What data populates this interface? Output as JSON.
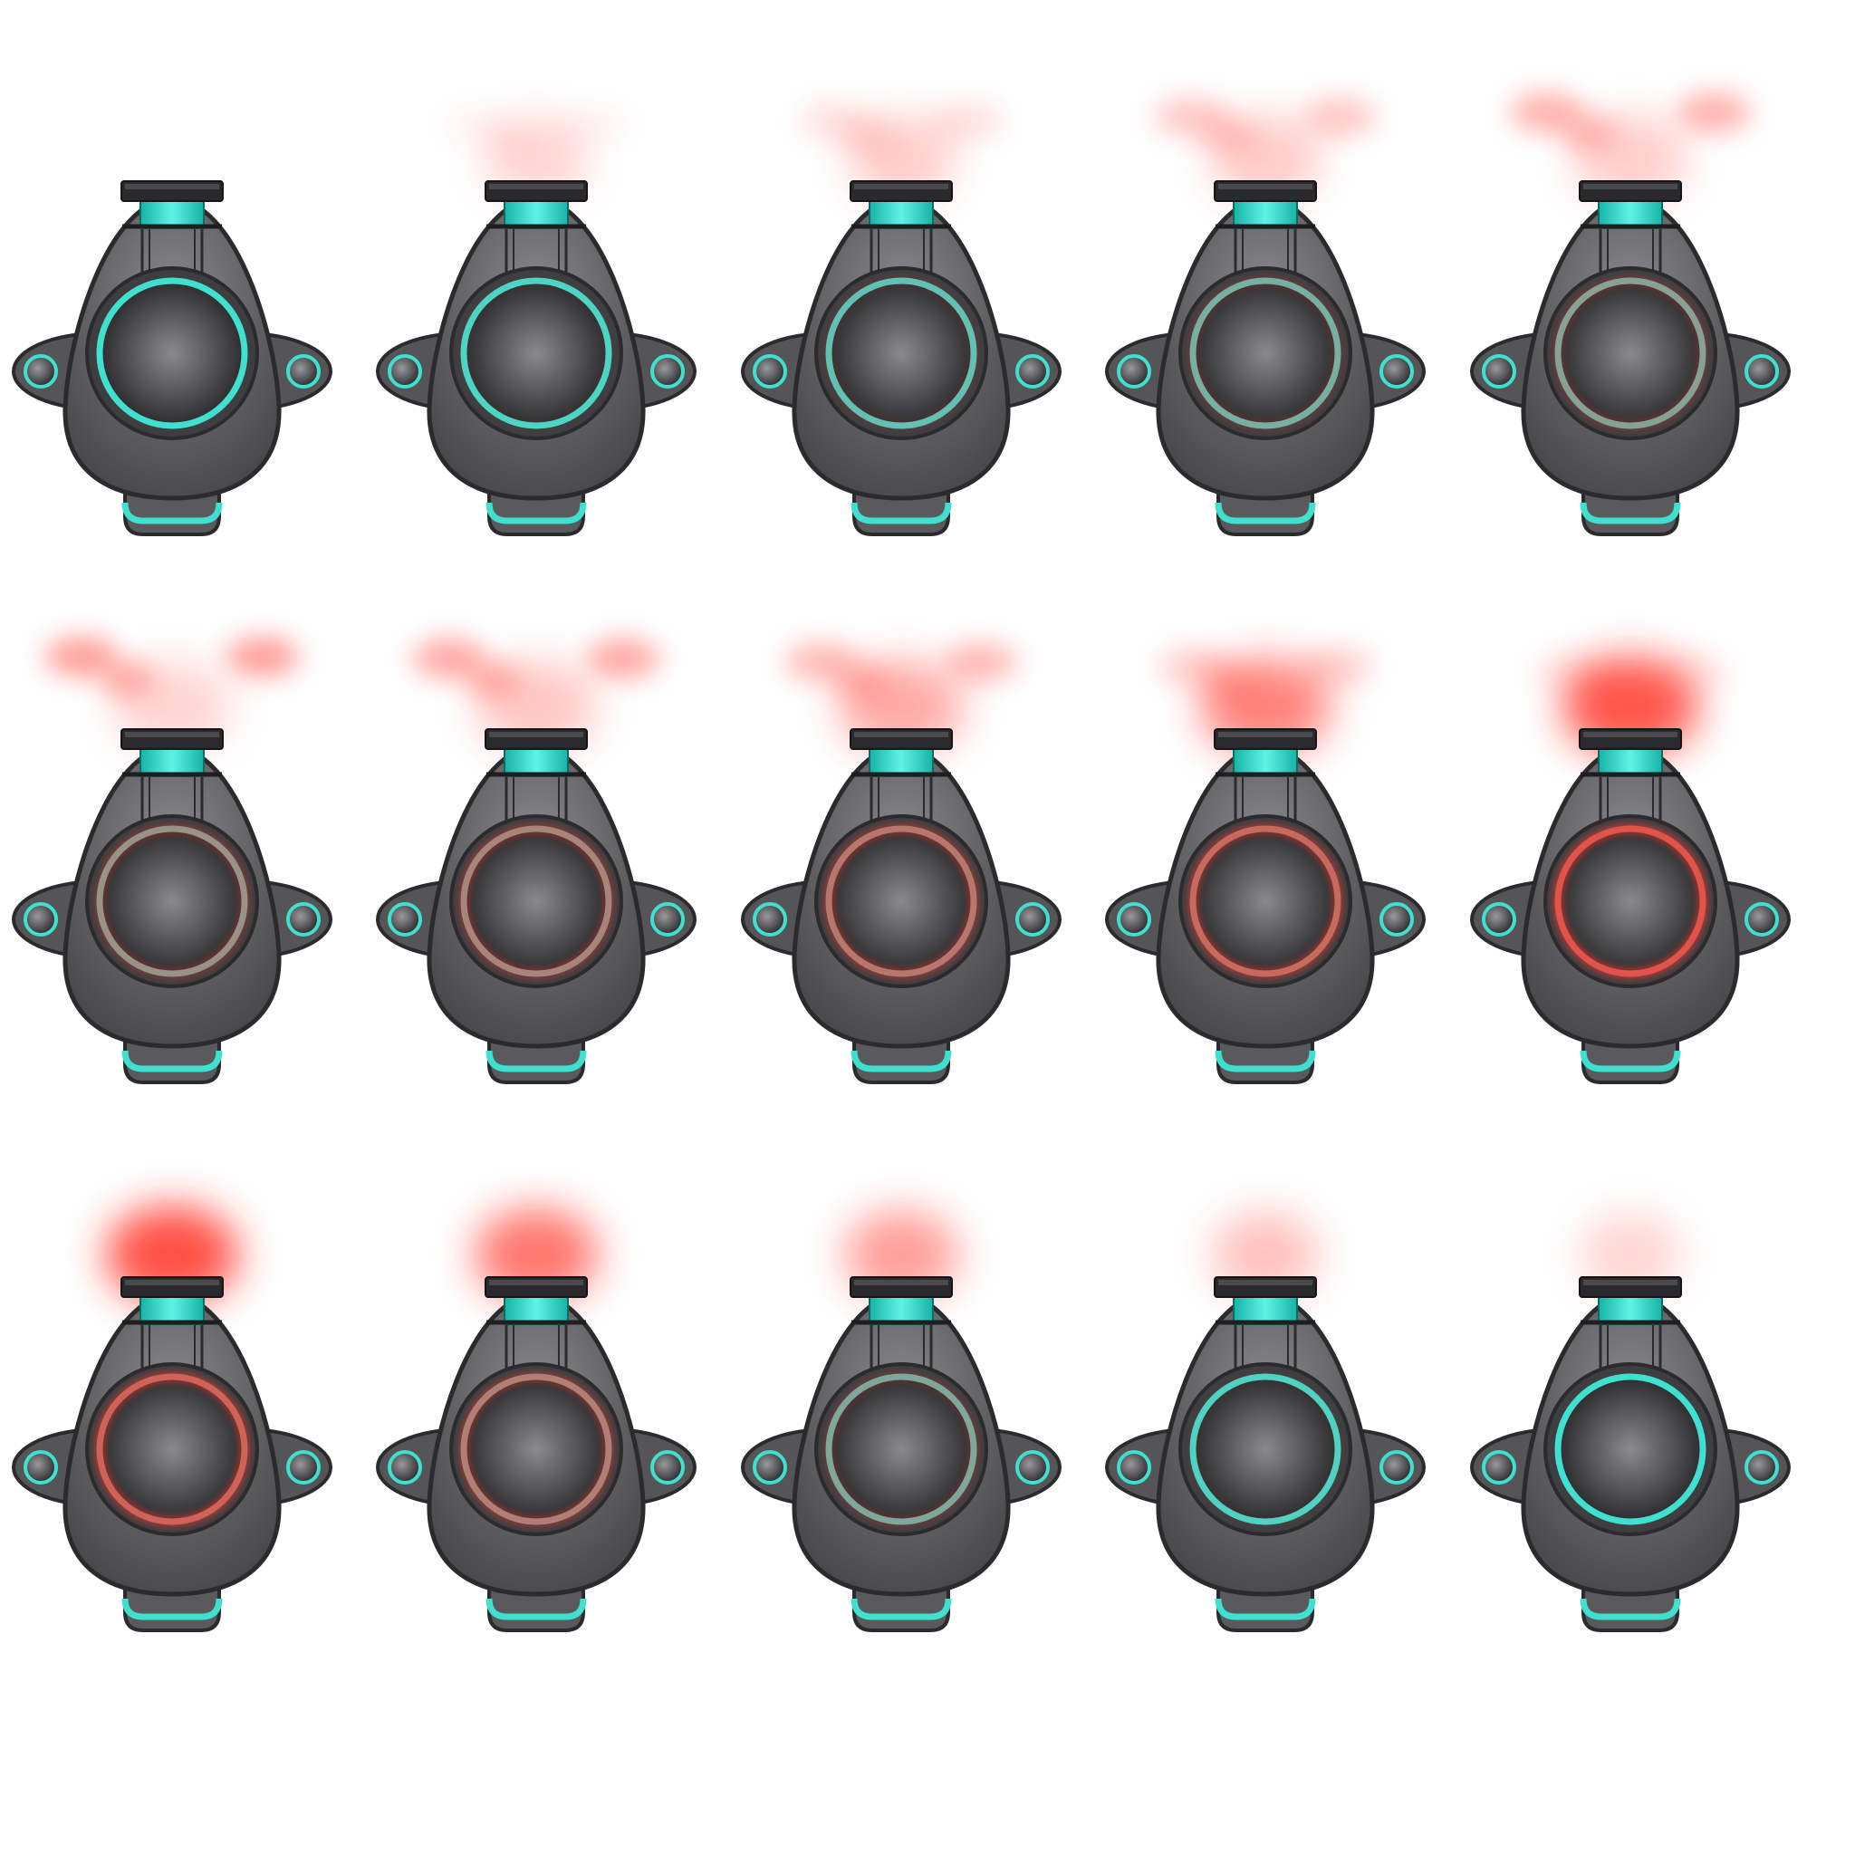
{
  "sprite_sheet": {
    "rows": 3,
    "columns": 5,
    "frame_count": 15,
    "background": "#ffffff",
    "colors": {
      "hull": "#5f5f61",
      "hull_outline": "#2b2b2d",
      "accent_teal": "#3fe0d0",
      "accent_teal_dark": "#17b3a6",
      "cap_dark": "#2a2a2c",
      "core_center": "#8a8a8c",
      "core_edge": "#2e2e30",
      "alert_red": "#ff2a1a"
    },
    "frames": [
      {
        "index": 1,
        "alert_level": 0.0,
        "ring_red": 0.0,
        "plume_spread": 0.0
      },
      {
        "index": 2,
        "alert_level": 0.08,
        "ring_red": 0.08,
        "plume_spread": 0.1
      },
      {
        "index": 3,
        "alert_level": 0.18,
        "ring_red": 0.22,
        "plume_spread": 0.3
      },
      {
        "index": 4,
        "alert_level": 0.28,
        "ring_red": 0.35,
        "plume_spread": 0.55
      },
      {
        "index": 5,
        "alert_level": 0.38,
        "ring_red": 0.45,
        "plume_spread": 0.8
      },
      {
        "index": 6,
        "alert_level": 0.45,
        "ring_red": 0.55,
        "plume_spread": 1.0
      },
      {
        "index": 7,
        "alert_level": 0.55,
        "ring_red": 0.65,
        "plume_spread": 0.9
      },
      {
        "index": 8,
        "alert_level": 0.7,
        "ring_red": 0.75,
        "plume_spread": 0.7
      },
      {
        "index": 9,
        "alert_level": 0.85,
        "ring_red": 0.85,
        "plume_spread": 0.45
      },
      {
        "index": 10,
        "alert_level": 1.0,
        "ring_red": 1.0,
        "plume_spread": 0.2
      },
      {
        "index": 11,
        "alert_level": 0.9,
        "ring_red": 0.9,
        "plume_spread": 0.0
      },
      {
        "index": 12,
        "alert_level": 0.65,
        "ring_red": 0.7,
        "plume_spread": 0.0
      },
      {
        "index": 13,
        "alert_level": 0.4,
        "ring_red": 0.4,
        "plume_spread": 0.0
      },
      {
        "index": 14,
        "alert_level": 0.18,
        "ring_red": 0.1,
        "plume_spread": 0.0
      },
      {
        "index": 15,
        "alert_level": 0.05,
        "ring_red": 0.0,
        "plume_spread": 0.0
      }
    ]
  }
}
